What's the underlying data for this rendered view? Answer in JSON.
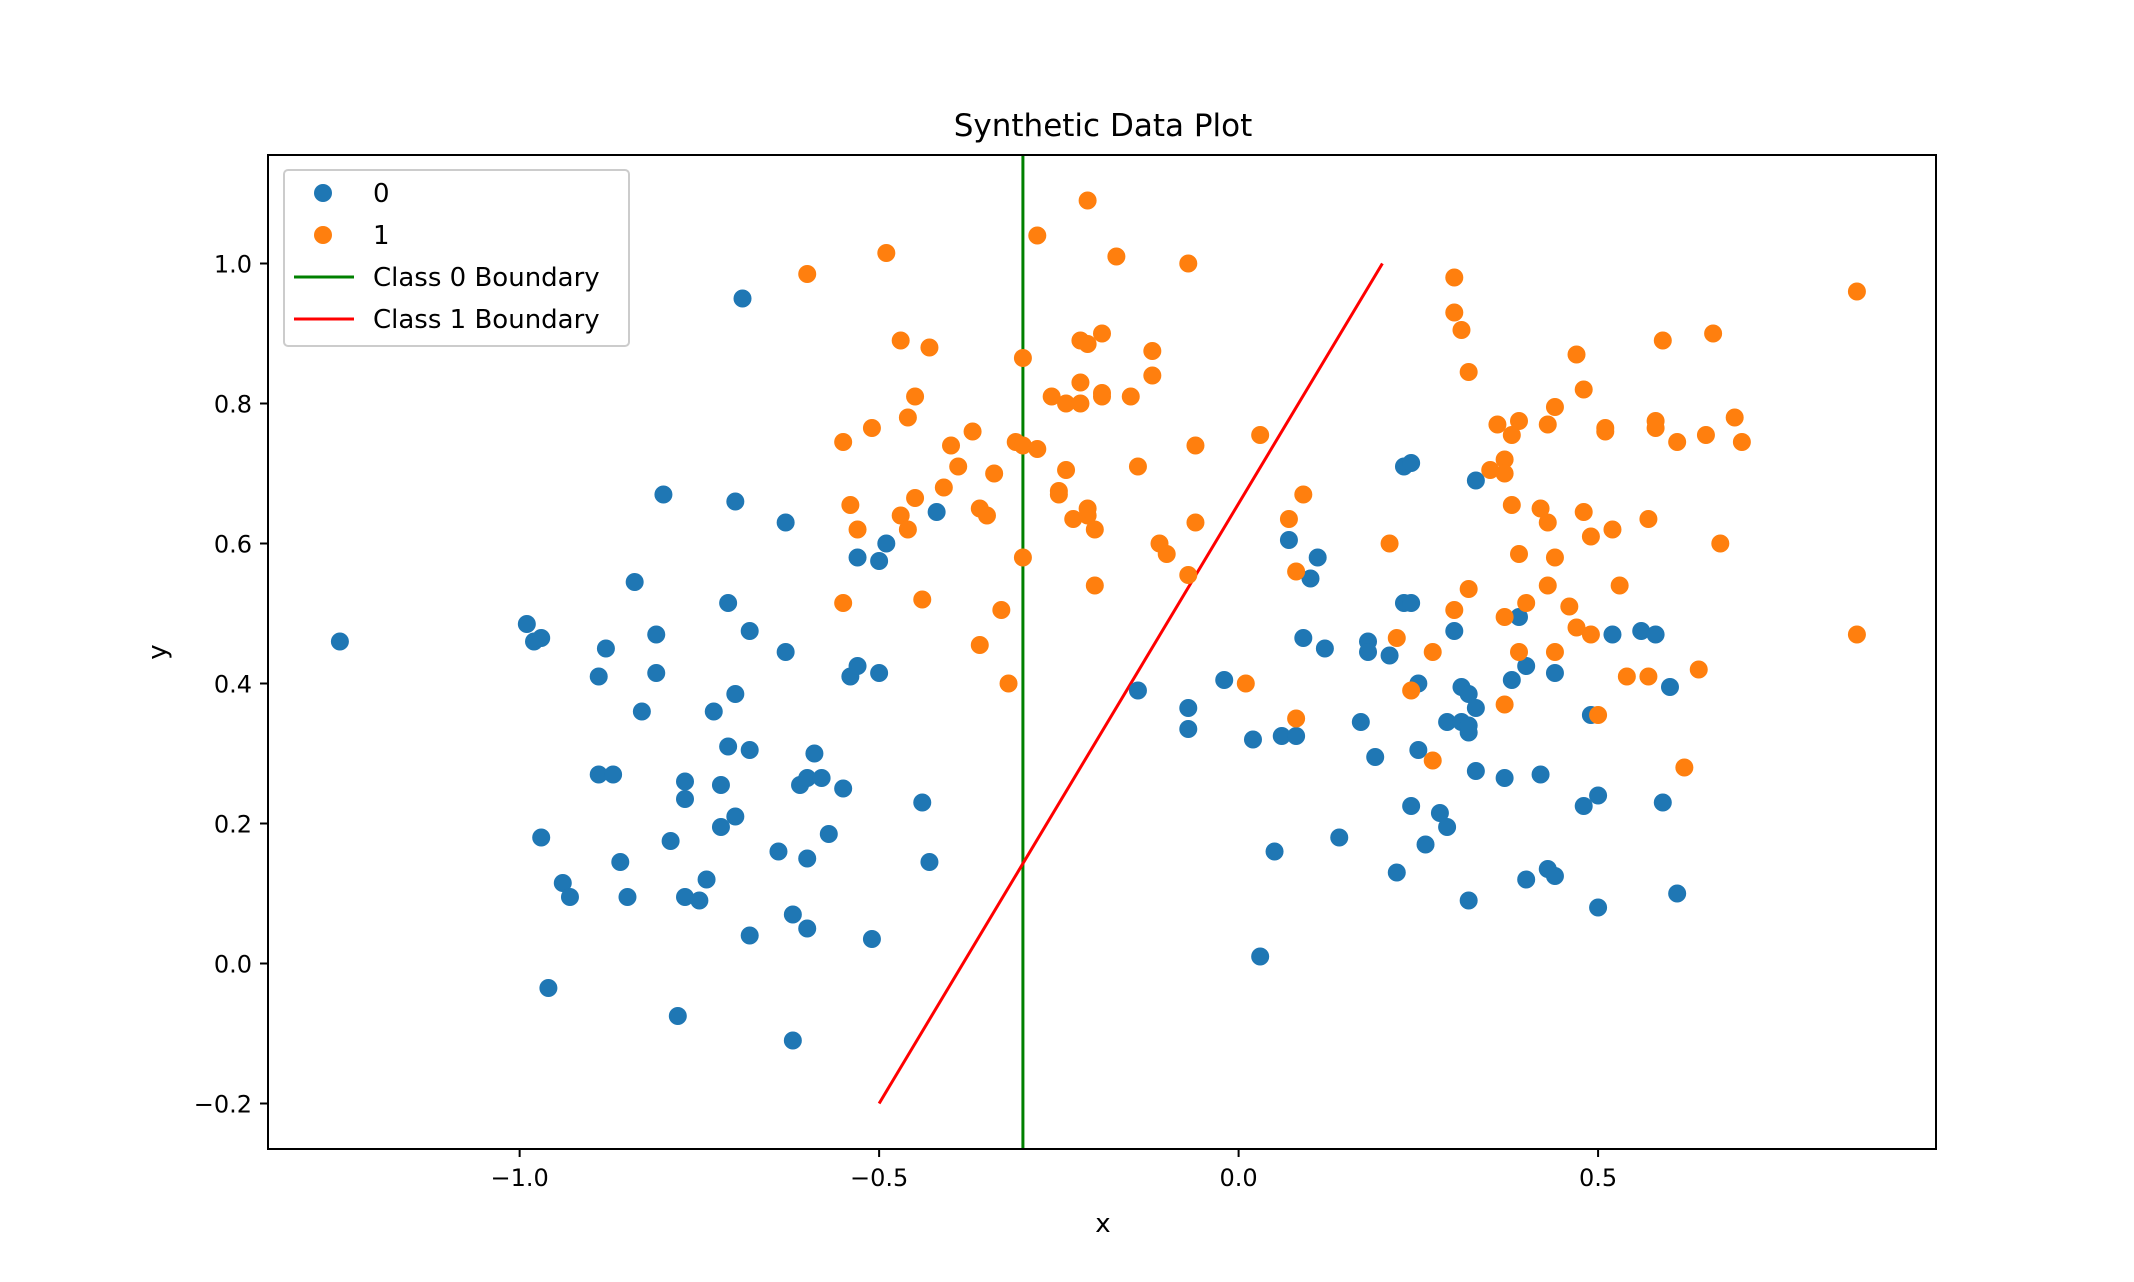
{
  "chart_data": {
    "type": "scatter",
    "title": "Synthetic Data Plot",
    "xlabel": "x",
    "ylabel": "y",
    "xlim": [
      -1.35,
      0.97
    ],
    "ylim": [
      -0.265,
      1.155
    ],
    "xticks": [
      -1.0,
      -0.5,
      0.0,
      0.5
    ],
    "xtick_labels": [
      "−1.0",
      "−0.5",
      "0.0",
      "0.5"
    ],
    "yticks": [
      -0.2,
      0.0,
      0.2,
      0.4,
      0.6,
      0.8,
      1.0
    ],
    "ytick_labels": [
      "−0.2",
      "0.0",
      "0.2",
      "0.4",
      "0.6",
      "0.8",
      "1.0"
    ],
    "grid": false,
    "legend_position": "upper-left",
    "legend": [
      {
        "label": "0",
        "kind": "marker",
        "color": "#1f77b4"
      },
      {
        "label": "1",
        "kind": "marker",
        "color": "#ff7f0e"
      },
      {
        "label": "Class 0 Boundary",
        "kind": "line",
        "color": "#008000"
      },
      {
        "label": "Class 1 Boundary",
        "kind": "line",
        "color": "#ff0000"
      }
    ],
    "series": [
      {
        "name": "0",
        "color": "#1f77b4",
        "points": [
          [
            -1.25,
            0.46
          ],
          [
            -0.99,
            0.485
          ],
          [
            -0.98,
            0.46
          ],
          [
            -0.97,
            0.465
          ],
          [
            -0.97,
            0.18
          ],
          [
            -0.96,
            -0.035
          ],
          [
            -0.94,
            0.115
          ],
          [
            -0.93,
            0.095
          ],
          [
            -0.89,
            0.41
          ],
          [
            -0.89,
            0.27
          ],
          [
            -0.88,
            0.45
          ],
          [
            -0.87,
            0.27
          ],
          [
            -0.86,
            0.145
          ],
          [
            -0.85,
            0.095
          ],
          [
            -0.84,
            0.545
          ],
          [
            -0.83,
            0.36
          ],
          [
            -0.81,
            0.47
          ],
          [
            -0.81,
            0.415
          ],
          [
            -0.8,
            0.67
          ],
          [
            -0.79,
            0.175
          ],
          [
            -0.78,
            -0.075
          ],
          [
            -0.77,
            0.26
          ],
          [
            -0.77,
            0.235
          ],
          [
            -0.77,
            0.095
          ],
          [
            -0.75,
            0.09
          ],
          [
            -0.74,
            0.12
          ],
          [
            -0.73,
            0.36
          ],
          [
            -0.72,
            0.255
          ],
          [
            -0.72,
            0.195
          ],
          [
            -0.71,
            0.515
          ],
          [
            -0.71,
            0.31
          ],
          [
            -0.7,
            0.66
          ],
          [
            -0.7,
            0.385
          ],
          [
            -0.7,
            0.21
          ],
          [
            -0.69,
            0.95
          ],
          [
            -0.68,
            0.475
          ],
          [
            -0.68,
            0.305
          ],
          [
            -0.68,
            0.04
          ],
          [
            -0.64,
            0.16
          ],
          [
            -0.63,
            0.63
          ],
          [
            -0.63,
            0.445
          ],
          [
            -0.62,
            0.07
          ],
          [
            -0.62,
            -0.11
          ],
          [
            -0.61,
            0.255
          ],
          [
            -0.6,
            0.265
          ],
          [
            -0.6,
            0.15
          ],
          [
            -0.6,
            0.05
          ],
          [
            -0.59,
            0.3
          ],
          [
            -0.58,
            0.265
          ],
          [
            -0.57,
            0.185
          ],
          [
            -0.55,
            0.25
          ],
          [
            -0.54,
            0.41
          ],
          [
            -0.53,
            0.58
          ],
          [
            -0.53,
            0.425
          ],
          [
            -0.51,
            0.035
          ],
          [
            -0.5,
            0.415
          ],
          [
            -0.5,
            0.575
          ],
          [
            -0.49,
            0.6
          ],
          [
            -0.44,
            0.23
          ],
          [
            -0.43,
            0.145
          ],
          [
            -0.42,
            0.645
          ],
          [
            -0.14,
            0.39
          ],
          [
            -0.07,
            0.365
          ],
          [
            -0.07,
            0.335
          ],
          [
            -0.02,
            0.405
          ],
          [
            0.02,
            0.32
          ],
          [
            0.03,
            0.01
          ],
          [
            0.05,
            0.16
          ],
          [
            0.06,
            0.325
          ],
          [
            0.07,
            0.605
          ],
          [
            0.08,
            0.325
          ],
          [
            0.09,
            0.465
          ],
          [
            0.1,
            0.55
          ],
          [
            0.11,
            0.58
          ],
          [
            0.12,
            0.45
          ],
          [
            0.14,
            0.18
          ],
          [
            0.17,
            0.345
          ],
          [
            0.18,
            0.46
          ],
          [
            0.18,
            0.445
          ],
          [
            0.19,
            0.295
          ],
          [
            0.21,
            0.44
          ],
          [
            0.22,
            0.13
          ],
          [
            0.23,
            0.71
          ],
          [
            0.23,
            0.515
          ],
          [
            0.24,
            0.715
          ],
          [
            0.24,
            0.515
          ],
          [
            0.24,
            0.225
          ],
          [
            0.25,
            0.4
          ],
          [
            0.25,
            0.305
          ],
          [
            0.26,
            0.17
          ],
          [
            0.28,
            0.215
          ],
          [
            0.29,
            0.345
          ],
          [
            0.29,
            0.195
          ],
          [
            0.3,
            0.475
          ],
          [
            0.31,
            0.345
          ],
          [
            0.31,
            0.395
          ],
          [
            0.32,
            0.385
          ],
          [
            0.32,
            0.33
          ],
          [
            0.32,
            0.34
          ],
          [
            0.32,
            0.09
          ],
          [
            0.33,
            0.69
          ],
          [
            0.33,
            0.365
          ],
          [
            0.33,
            0.275
          ],
          [
            0.37,
            0.265
          ],
          [
            0.38,
            0.405
          ],
          [
            0.39,
            0.495
          ],
          [
            0.4,
            0.425
          ],
          [
            0.4,
            0.12
          ],
          [
            0.42,
            0.27
          ],
          [
            0.43,
            0.135
          ],
          [
            0.44,
            0.125
          ],
          [
            0.44,
            0.415
          ],
          [
            0.48,
            0.225
          ],
          [
            0.49,
            0.355
          ],
          [
            0.5,
            0.24
          ],
          [
            0.5,
            0.08
          ],
          [
            0.52,
            0.47
          ],
          [
            0.56,
            0.475
          ],
          [
            0.58,
            0.47
          ],
          [
            0.59,
            0.23
          ],
          [
            0.6,
            0.395
          ],
          [
            0.61,
            0.1
          ]
        ]
      },
      {
        "name": "1",
        "color": "#ff7f0e",
        "points": [
          [
            -0.6,
            0.985
          ],
          [
            -0.55,
            0.515
          ],
          [
            -0.55,
            0.745
          ],
          [
            -0.54,
            0.655
          ],
          [
            -0.53,
            0.62
          ],
          [
            -0.51,
            0.765
          ],
          [
            -0.49,
            1.015
          ],
          [
            -0.47,
            0.89
          ],
          [
            -0.47,
            0.64
          ],
          [
            -0.46,
            0.62
          ],
          [
            -0.46,
            0.78
          ],
          [
            -0.45,
            0.81
          ],
          [
            -0.45,
            0.665
          ],
          [
            -0.44,
            0.52
          ],
          [
            -0.43,
            0.88
          ],
          [
            -0.41,
            0.68
          ],
          [
            -0.4,
            0.74
          ],
          [
            -0.39,
            0.71
          ],
          [
            -0.37,
            0.76
          ],
          [
            -0.36,
            0.65
          ],
          [
            -0.36,
            0.455
          ],
          [
            -0.35,
            0.64
          ],
          [
            -0.34,
            0.7
          ],
          [
            -0.33,
            0.505
          ],
          [
            -0.32,
            0.4
          ],
          [
            -0.31,
            0.745
          ],
          [
            -0.3,
            0.58
          ],
          [
            -0.3,
            0.865
          ],
          [
            -0.3,
            0.74
          ],
          [
            -0.28,
            1.04
          ],
          [
            -0.28,
            0.735
          ],
          [
            -0.26,
            0.81
          ],
          [
            -0.25,
            0.675
          ],
          [
            -0.25,
            0.67
          ],
          [
            -0.24,
            0.705
          ],
          [
            -0.24,
            0.8
          ],
          [
            -0.23,
            0.635
          ],
          [
            -0.22,
            0.8
          ],
          [
            -0.22,
            0.83
          ],
          [
            -0.22,
            0.89
          ],
          [
            -0.21,
            0.64
          ],
          [
            -0.21,
            0.65
          ],
          [
            -0.21,
            0.885
          ],
          [
            -0.21,
            1.09
          ],
          [
            -0.2,
            0.62
          ],
          [
            -0.2,
            0.54
          ],
          [
            -0.19,
            0.9
          ],
          [
            -0.19,
            0.81
          ],
          [
            -0.19,
            0.815
          ],
          [
            -0.17,
            1.01
          ],
          [
            -0.15,
            0.81
          ],
          [
            -0.14,
            0.71
          ],
          [
            -0.12,
            0.84
          ],
          [
            -0.12,
            0.875
          ],
          [
            -0.11,
            0.6
          ],
          [
            -0.1,
            0.585
          ],
          [
            -0.07,
            0.555
          ],
          [
            -0.07,
            1.0
          ],
          [
            -0.06,
            0.74
          ],
          [
            -0.06,
            0.63
          ],
          [
            0.01,
            0.4
          ],
          [
            0.03,
            0.755
          ],
          [
            0.07,
            0.635
          ],
          [
            0.08,
            0.56
          ],
          [
            0.08,
            0.35
          ],
          [
            0.09,
            0.67
          ],
          [
            0.21,
            0.6
          ],
          [
            0.22,
            0.465
          ],
          [
            0.24,
            0.39
          ],
          [
            0.27,
            0.445
          ],
          [
            0.27,
            0.29
          ],
          [
            0.3,
            0.93
          ],
          [
            0.3,
            0.98
          ],
          [
            0.3,
            0.505
          ],
          [
            0.31,
            0.905
          ],
          [
            0.32,
            0.845
          ],
          [
            0.32,
            0.535
          ],
          [
            0.35,
            0.705
          ],
          [
            0.36,
            0.77
          ],
          [
            0.37,
            0.37
          ],
          [
            0.37,
            0.495
          ],
          [
            0.37,
            0.72
          ],
          [
            0.37,
            0.7
          ],
          [
            0.38,
            0.755
          ],
          [
            0.38,
            0.655
          ],
          [
            0.39,
            0.775
          ],
          [
            0.39,
            0.585
          ],
          [
            0.39,
            0.445
          ],
          [
            0.4,
            0.515
          ],
          [
            0.42,
            0.65
          ],
          [
            0.43,
            0.77
          ],
          [
            0.43,
            0.54
          ],
          [
            0.43,
            0.63
          ],
          [
            0.44,
            0.445
          ],
          [
            0.44,
            0.795
          ],
          [
            0.44,
            0.58
          ],
          [
            0.46,
            0.51
          ],
          [
            0.47,
            0.87
          ],
          [
            0.47,
            0.48
          ],
          [
            0.48,
            0.645
          ],
          [
            0.48,
            0.82
          ],
          [
            0.49,
            0.47
          ],
          [
            0.49,
            0.61
          ],
          [
            0.5,
            0.355
          ],
          [
            0.51,
            0.765
          ],
          [
            0.51,
            0.76
          ],
          [
            0.52,
            0.62
          ],
          [
            0.53,
            0.54
          ],
          [
            0.54,
            0.41
          ],
          [
            0.57,
            0.41
          ],
          [
            0.57,
            0.635
          ],
          [
            0.58,
            0.775
          ],
          [
            0.58,
            0.765
          ],
          [
            0.59,
            0.89
          ],
          [
            0.61,
            0.745
          ],
          [
            0.62,
            0.28
          ],
          [
            0.64,
            0.42
          ],
          [
            0.65,
            0.755
          ],
          [
            0.66,
            0.9
          ],
          [
            0.67,
            0.6
          ],
          [
            0.69,
            0.78
          ],
          [
            0.7,
            0.745
          ],
          [
            0.86,
            0.96
          ],
          [
            0.86,
            0.47
          ]
        ]
      }
    ],
    "lines": [
      {
        "name": "Class 0 Boundary",
        "color": "#008000",
        "x": [
          -0.3,
          -0.3
        ],
        "y": [
          -0.265,
          1.155
        ]
      },
      {
        "name": "Class 1 Boundary",
        "color": "#ff0000",
        "x": [
          -0.5,
          0.2
        ],
        "y": [
          -0.2,
          1.0
        ]
      }
    ]
  }
}
